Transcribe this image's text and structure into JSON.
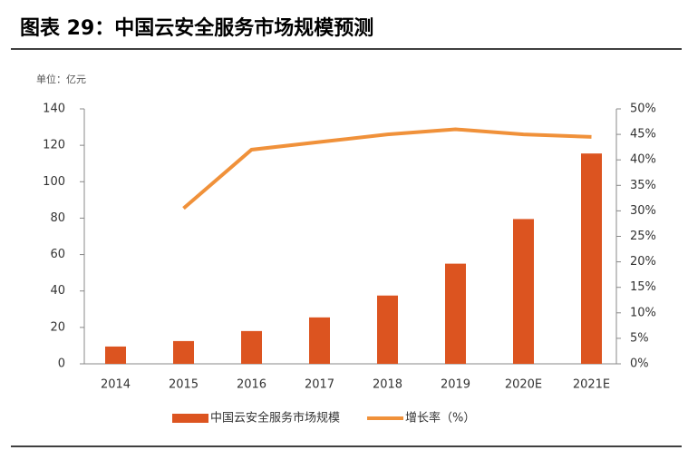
{
  "title": "图表 29：中国云安全服务市场规模预测",
  "chart_data": {
    "type": "bar-line",
    "unit_label": "单位：亿元",
    "categories": [
      "2014",
      "2015",
      "2016",
      "2017",
      "2018",
      "2019",
      "2020E",
      "2021E"
    ],
    "series": [
      {
        "name": "中国云安全服务市场规模",
        "type": "bar",
        "color": "#dc5420",
        "values": [
          9.5,
          12.5,
          18,
          25.5,
          37.5,
          55,
          79.5,
          115.5
        ]
      },
      {
        "name": "增长率（%）",
        "type": "line",
        "axis": "y2",
        "color": "#f0913a",
        "values": [
          null,
          30.5,
          42,
          43.5,
          45,
          46,
          45,
          44.5
        ]
      }
    ],
    "ylim": [
      0,
      140
    ],
    "yticks": [
      0,
      20,
      40,
      60,
      80,
      100,
      120,
      140
    ],
    "y2lim": [
      0,
      50
    ],
    "y2ticks": [
      {
        "value": 0,
        "label": "0%"
      },
      {
        "value": 5,
        "label": "5%"
      },
      {
        "value": 10,
        "label": "10%"
      },
      {
        "value": 15,
        "label": "15%"
      },
      {
        "value": 20,
        "label": "20%"
      },
      {
        "value": 25,
        "label": "25%"
      },
      {
        "value": 30,
        "label": "30%"
      },
      {
        "value": 35,
        "label": "35%"
      },
      {
        "value": 40,
        "label": "40%"
      },
      {
        "value": 45,
        "label": "45%"
      },
      {
        "value": 50,
        "label": "50%"
      }
    ]
  }
}
